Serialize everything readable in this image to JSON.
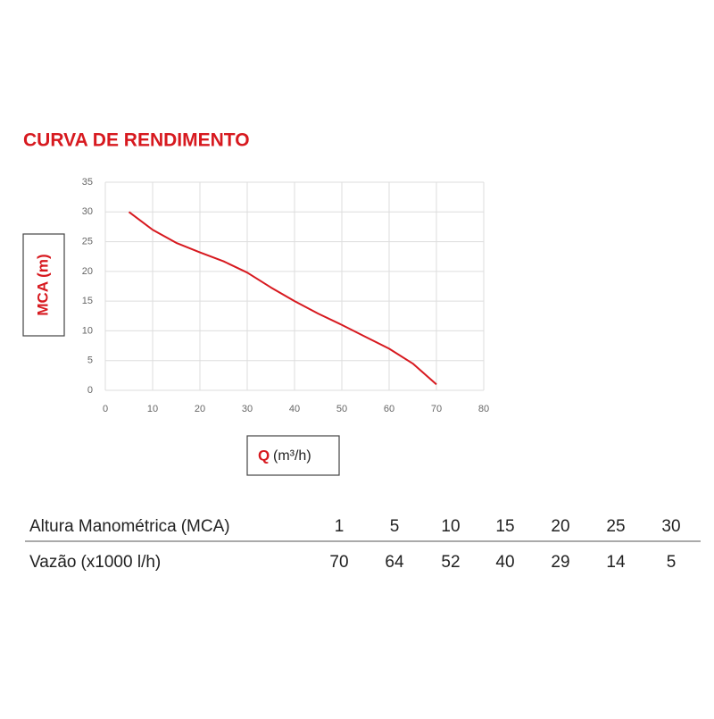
{
  "chart_data": {
    "type": "line",
    "title": "CURVA DE RENDIMENTO",
    "y_label": "MCA (m)",
    "x_label": "Q",
    "x_unit": "(m³/h)",
    "x": [
      5,
      10,
      15,
      20,
      25,
      30,
      35,
      40,
      45,
      50,
      55,
      60,
      65,
      70
    ],
    "values": [
      30,
      27,
      24.8,
      23.2,
      21.7,
      19.8,
      17.3,
      15,
      12.9,
      11,
      9,
      7,
      4.5,
      1
    ],
    "color": "#d7191f",
    "grid": true,
    "xlim": [
      0,
      80
    ],
    "xticks": [
      0,
      10,
      20,
      30,
      40,
      50,
      60,
      70,
      80
    ],
    "ylim": [
      0,
      35
    ],
    "yticks": [
      0,
      5,
      10,
      15,
      20,
      25,
      30,
      35
    ]
  },
  "table": {
    "rows": [
      {
        "name": "Altura Manométrica",
        "unit": "(MCA)",
        "cells": [
          1,
          5,
          10,
          15,
          20,
          25,
          30
        ]
      },
      {
        "name": "Vazão",
        "unit": "(x1000 l/h)",
        "cells": [
          70,
          64,
          52,
          40,
          29,
          14,
          5
        ]
      }
    ]
  }
}
